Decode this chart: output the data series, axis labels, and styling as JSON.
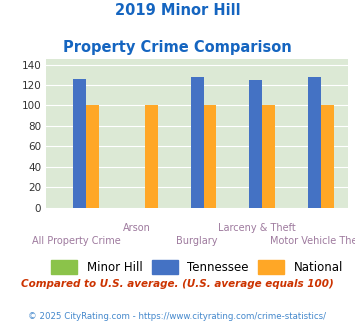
{
  "title_line1": "2019 Minor Hill",
  "title_line2": "Property Crime Comparison",
  "groups": [
    {
      "label_top": "",
      "label_bottom": "All Property Crime"
    },
    {
      "label_top": "Arson",
      "label_bottom": ""
    },
    {
      "label_top": "",
      "label_bottom": "Burglary"
    },
    {
      "label_top": "Larceny & Theft",
      "label_bottom": ""
    },
    {
      "label_top": "",
      "label_bottom": "Motor Vehicle Theft"
    }
  ],
  "minor_hill": [
    0,
    0,
    0,
    0,
    0
  ],
  "tennessee": [
    126,
    0,
    128,
    125,
    128
  ],
  "national": [
    100,
    100,
    100,
    100,
    100
  ],
  "ylim": [
    0,
    145
  ],
  "yticks": [
    0,
    20,
    40,
    60,
    80,
    100,
    120,
    140
  ],
  "color_minor_hill": "#8bc34a",
  "color_tennessee": "#4472c4",
  "color_national": "#ffa726",
  "bg_color": "#dce9d5",
  "title_color": "#1565c0",
  "xlabel_color": "#9e7a9e",
  "legend_label_minor": "Minor Hill",
  "legend_label_tennessee": "Tennessee",
  "legend_label_national": "National",
  "footnote1": "Compared to U.S. average. (U.S. average equals 100)",
  "footnote2": "© 2025 CityRating.com - https://www.cityrating.com/crime-statistics/",
  "footnote1_color": "#cc3300",
  "footnote2_color": "#4488cc"
}
